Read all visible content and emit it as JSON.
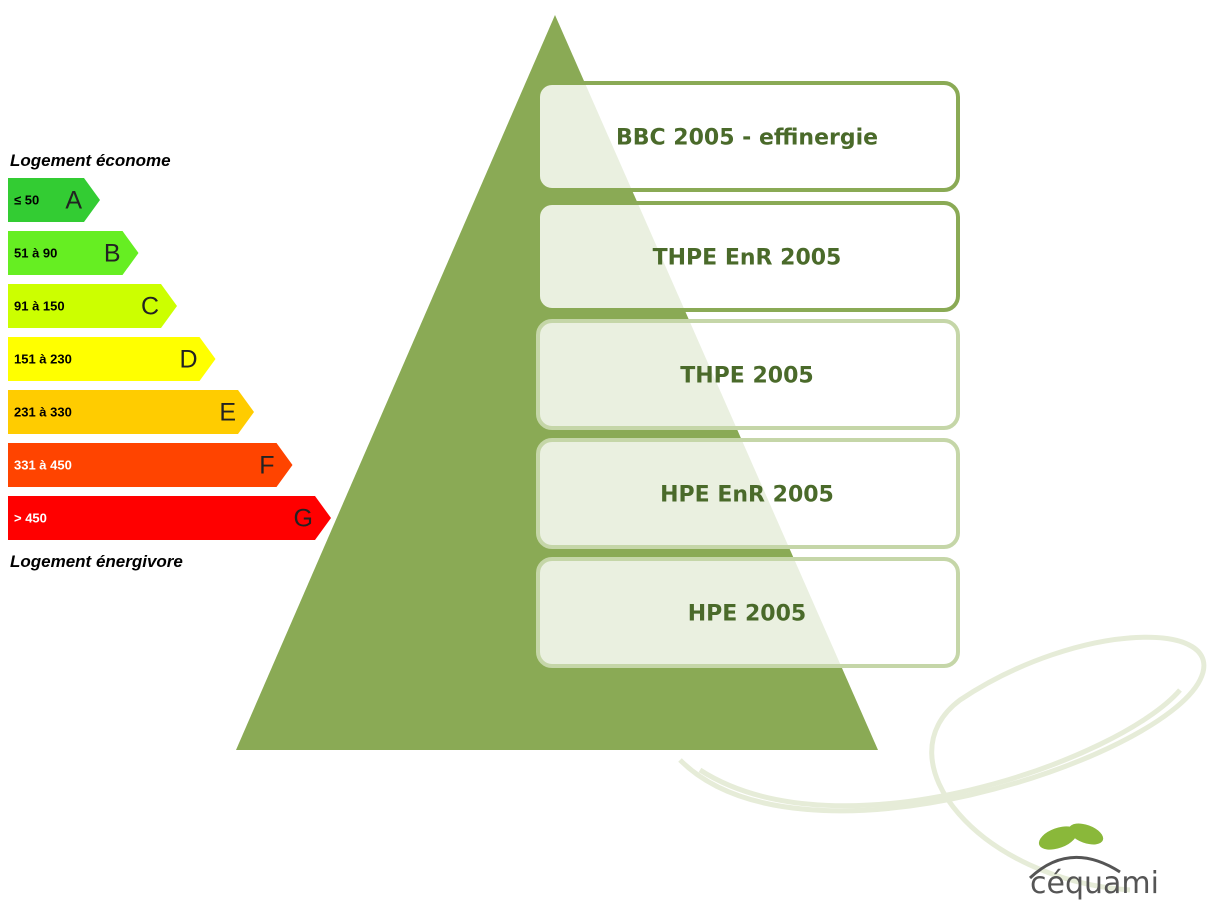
{
  "energy_scale": {
    "top_label": "Logement économe",
    "bottom_label": "Logement énergivore",
    "classes": [
      {
        "range": "≤ 50",
        "letter": "A",
        "color": "#33cc33"
      },
      {
        "range": "51 à 90",
        "letter": "B",
        "color": "#66ee22"
      },
      {
        "range": "91 à 150",
        "letter": "C",
        "color": "#ccff00"
      },
      {
        "range": "151 à 230",
        "letter": "D",
        "color": "#ffff00"
      },
      {
        "range": "231 à 330",
        "letter": "E",
        "color": "#ffcc00"
      },
      {
        "range": "331 à 450",
        "letter": "F",
        "color": "#ff4400"
      },
      {
        "range": "> 450",
        "letter": "G",
        "color": "#ff0000"
      }
    ]
  },
  "pyramid": {
    "levels": [
      "BBC 2005 - effinergie",
      "THPE EnR 2005",
      "THPE 2005",
      "HPE EnR 2005",
      "HPE 2005"
    ]
  },
  "logo": "céquami"
}
